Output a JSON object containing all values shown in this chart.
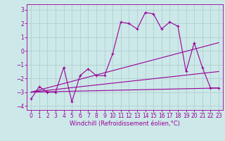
{
  "xlabel": "Windchill (Refroidissement éolien,°C)",
  "ylabel": "",
  "background_color": "#cce8e8",
  "grid_color": "#aacccc",
  "line_color": "#990099",
  "xlim": [
    -0.5,
    23.5
  ],
  "ylim": [
    -4.3,
    3.4
  ],
  "yticks": [
    -4,
    -3,
    -2,
    -1,
    0,
    1,
    2,
    3
  ],
  "xticks": [
    0,
    1,
    2,
    3,
    4,
    5,
    6,
    7,
    8,
    9,
    10,
    11,
    12,
    13,
    14,
    15,
    16,
    17,
    18,
    19,
    20,
    21,
    22,
    23
  ],
  "main_x": [
    0,
    1,
    2,
    3,
    4,
    5,
    6,
    7,
    8,
    9,
    10,
    11,
    12,
    13,
    14,
    15,
    16,
    17,
    18,
    19,
    20,
    21,
    22,
    23
  ],
  "main_y": [
    -3.5,
    -2.6,
    -3.0,
    -3.0,
    -1.2,
    -3.7,
    -1.8,
    -1.3,
    -1.8,
    -1.8,
    -0.2,
    2.1,
    2.0,
    1.6,
    2.8,
    2.7,
    1.6,
    2.1,
    1.8,
    -1.5,
    0.6,
    -1.2,
    -2.7,
    -2.7
  ],
  "line1_x": [
    0,
    23
  ],
  "line1_y": [
    -3.0,
    -2.7
  ],
  "line2_x": [
    0,
    23
  ],
  "line2_y": [
    -3.0,
    0.6
  ],
  "line3_x": [
    0,
    23
  ],
  "line3_y": [
    -3.0,
    -1.5
  ],
  "tick_fontsize": 5.5,
  "xlabel_fontsize": 6.0
}
